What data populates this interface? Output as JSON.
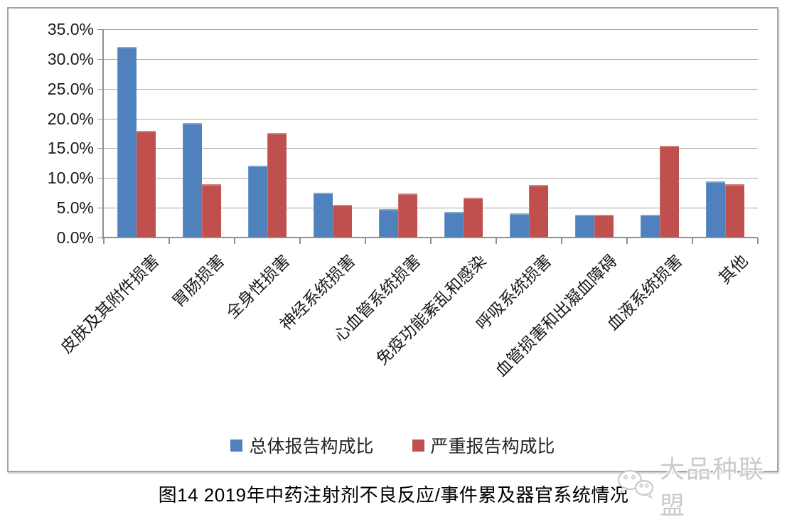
{
  "caption": "图14 2019年中药注射剂不良反应/事件累及器官系统情况",
  "watermark": {
    "icon": "wechat-logo-icon",
    "text": "大品种联盟",
    "color": "#cbcbcb"
  },
  "legend": {
    "items": [
      "总体报告构成比",
      "严重报告构成比"
    ]
  },
  "colors": {
    "series_blue": "#4F81BD",
    "series_red": "#C0504D",
    "gridline": "#A6A6A6",
    "axis": "#8F8F8F",
    "text": "#1A1A1A",
    "frame_border": "#A3A3A3"
  },
  "chart_data": {
    "type": "bar",
    "title": "",
    "xlabel": "",
    "ylabel": "",
    "grid": "horizontal",
    "legend_position": "bottom",
    "ylim": [
      0,
      35
    ],
    "ytick_step": 5,
    "yticks": [
      "35.0%",
      "30.0%",
      "25.0%",
      "20.0%",
      "15.0%",
      "10.0%",
      "5.0%",
      "0.0%"
    ],
    "categories": [
      "皮肤及其附件损害",
      "胃肠损害",
      "全身性损害",
      "神经系统损害",
      "心血管系统损害",
      "免疫功能紊乱和感染",
      "呼吸系统损害",
      "血管损害和出凝血障碍",
      "血液系统损害",
      "其他"
    ],
    "series": [
      {
        "name": "总体报告构成比",
        "color": "#4F81BD",
        "values": [
          31.9,
          19.1,
          12.0,
          7.4,
          4.7,
          4.2,
          3.9,
          3.7,
          3.7,
          9.3
        ]
      },
      {
        "name": "严重报告构成比",
        "color": "#C0504D",
        "values": [
          17.8,
          8.9,
          17.5,
          5.4,
          7.3,
          6.6,
          8.7,
          3.7,
          15.3,
          8.8
        ]
      }
    ]
  }
}
